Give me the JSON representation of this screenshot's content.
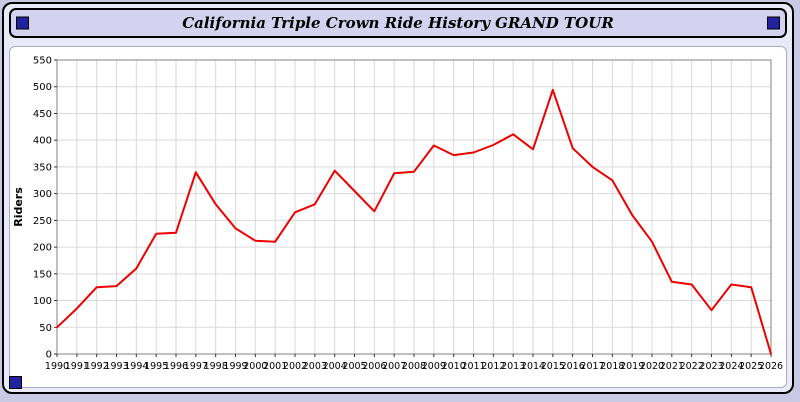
{
  "header": {
    "title": "California Triple Crown Ride History GRAND TOUR",
    "background": "#d3d3ef",
    "accent_color": "#2222a0"
  },
  "chart_data": {
    "type": "line",
    "title": "California Triple Crown Ride History GRAND TOUR",
    "xlabel": "",
    "ylabel": "Riders",
    "x": [
      1990,
      1991,
      1992,
      1993,
      1994,
      1995,
      1996,
      1997,
      1998,
      1999,
      2000,
      2001,
      2002,
      2003,
      2004,
      2005,
      2006,
      2007,
      2008,
      2009,
      2010,
      2011,
      2012,
      2013,
      2014,
      2015,
      2016,
      2017,
      2018,
      2019,
      2020,
      2021,
      2022,
      2023,
      2024,
      2025,
      2026
    ],
    "values": [
      50,
      85,
      125,
      127,
      160,
      225,
      227,
      340,
      280,
      235,
      212,
      210,
      265,
      280,
      343,
      305,
      267,
      338,
      341,
      390,
      372,
      377,
      391,
      411,
      383,
      494,
      385,
      350,
      325,
      260,
      210,
      135,
      130,
      82,
      130,
      125,
      0
    ],
    "ylim": [
      0,
      550
    ],
    "ytick_step": 50,
    "grid": true,
    "grid_color": "#d9d9d9",
    "line_color": "#ee0000",
    "axis_color": "#808080",
    "legend_position": "none"
  }
}
